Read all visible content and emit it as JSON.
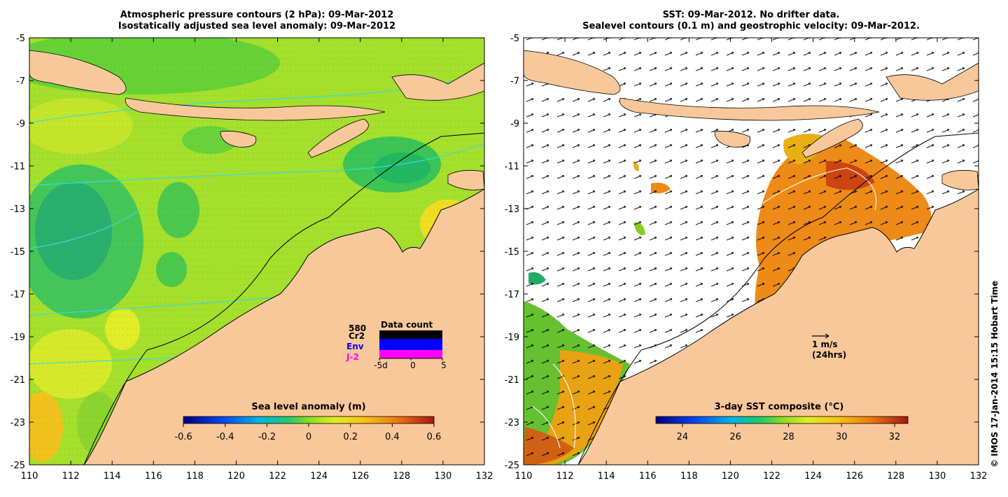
{
  "left_panel": {
    "title_line1": "Atmospheric pressure contours (2 hPa): 09-Mar-2012",
    "title_line2": "Isostatically adjusted sea level anomaly: 09-Mar-2012",
    "y_ticks": [
      "-5",
      "-7",
      "-9",
      "-11",
      "-13",
      "-15",
      "-17",
      "-19",
      "-21",
      "-23",
      "-25"
    ],
    "x_ticks": [
      "110",
      "112",
      "114",
      "116",
      "118",
      "120",
      "122",
      "124",
      "126",
      "128",
      "130",
      "132"
    ],
    "colorbar": {
      "label": "Sea level anomaly (m)",
      "min": -0.6,
      "max": 0.6,
      "ticks": [
        "-0.6",
        "-0.4",
        "-0.2",
        "0",
        "0.2",
        "0.4",
        "0.6"
      ]
    },
    "data_count": {
      "title": "Data count",
      "total": "580",
      "labels": [
        "Cr2",
        "Env",
        "J-2"
      ],
      "label_colors": [
        "#000000",
        "#0000ff",
        "#ff00ff"
      ],
      "x_ticks": [
        "-5d",
        "0",
        "5"
      ]
    }
  },
  "right_panel": {
    "title_line1": "SST: 09-Mar-2012. No drifter data.",
    "title_line2": "Sealevel contours (0.1 m) and geostrophic velocity: 09-Mar-2012.",
    "y_ticks": [
      "-5",
      "-7",
      "-9",
      "-11",
      "-13",
      "-15",
      "-17",
      "-19",
      "-21",
      "-23",
      "-25"
    ],
    "x_ticks": [
      "110",
      "112",
      "114",
      "116",
      "118",
      "120",
      "122",
      "124",
      "126",
      "128",
      "130",
      "132"
    ],
    "colorbar": {
      "label": "3-day SST composite (°C)",
      "min": 23,
      "max": 32.5,
      "ticks": [
        "24",
        "26",
        "28",
        "30",
        "32"
      ]
    },
    "scale_arrow": {
      "label": "1 m/s",
      "sub_label": "(24hrs)"
    }
  },
  "credit": "© IMOS 17-Jan-2014 15:15 Hobart Time",
  "colors": {
    "land": "#f9c89a",
    "coast": "#000000",
    "contour": "#33dddd"
  }
}
